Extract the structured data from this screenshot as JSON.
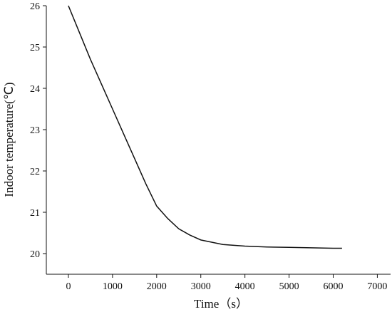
{
  "chart_data": {
    "type": "line",
    "x_label": "Time（s）",
    "y_label": "Indoor temperature(℃)",
    "x": [
      0,
      250,
      500,
      750,
      1000,
      1250,
      1500,
      1750,
      2000,
      2250,
      2500,
      2750,
      3000,
      3500,
      4000,
      4500,
      5000,
      5500,
      6000,
      6200
    ],
    "series": [
      {
        "name": "Indoor temperature",
        "color": "#111111",
        "values": [
          26.0,
          25.35,
          24.7,
          24.1,
          23.5,
          22.9,
          22.3,
          21.7,
          21.15,
          20.85,
          20.6,
          20.45,
          20.33,
          20.22,
          20.18,
          20.16,
          20.15,
          20.14,
          20.13,
          20.13
        ]
      }
    ],
    "xlim": [
      -500,
      7300
    ],
    "ylim": [
      19.5,
      26
    ],
    "xticks": [
      0,
      1000,
      2000,
      3000,
      4000,
      5000,
      6000,
      7000
    ],
    "yticks": [
      20,
      21,
      22,
      23,
      24,
      25,
      26
    ]
  }
}
